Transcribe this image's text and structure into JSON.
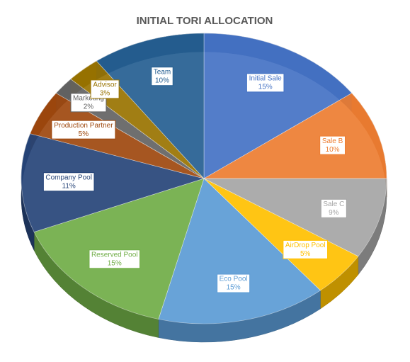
{
  "chart_data": {
    "type": "pie",
    "title": "INITIAL TORI ALLOCATION",
    "categories": [
      "Initial Sale",
      "Sale B",
      "Sale C",
      "AirDrop Pool",
      "Eco Pool",
      "Reserved Pool",
      "Company Pool",
      "Production Partner",
      "Marketing",
      "Advisor",
      "Team"
    ],
    "values": [
      15,
      10,
      9,
      5,
      15,
      15,
      11,
      5,
      2,
      3,
      10
    ],
    "value_labels": [
      "15%",
      "10%",
      "9%",
      "5%",
      "15%",
      "15%",
      "11%",
      "5%",
      "2%",
      "3%",
      "10%"
    ],
    "colors": [
      "#4472c4",
      "#ed7d31",
      "#a5a5a5",
      "#ffc000",
      "#5b9bd5",
      "#70ad47",
      "#264478",
      "#9e480e",
      "#636363",
      "#997300",
      "#255e91"
    ]
  }
}
